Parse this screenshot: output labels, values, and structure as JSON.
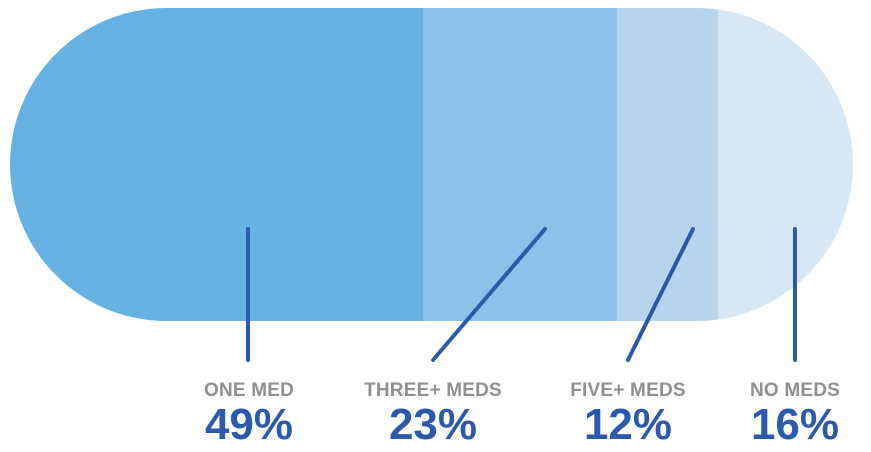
{
  "chart_data": {
    "type": "bar",
    "title": "",
    "categories": [
      "ONE MED",
      "THREE+ MEDS",
      "FIVE+ MEDS",
      "NO MEDS"
    ],
    "values": [
      49,
      23,
      12,
      16
    ],
    "value_labels": [
      "49%",
      "23%",
      "12%",
      "16%"
    ],
    "colors": [
      "#64b1e2",
      "#8fc1e8",
      "#b4d4f0",
      "#d6e7f6"
    ],
    "leader_color": "#2a5aa9",
    "label_color": "#8f8f8f",
    "value_label_color": "#2a5aa9",
    "stacked": true,
    "orientation": "horizontal"
  }
}
